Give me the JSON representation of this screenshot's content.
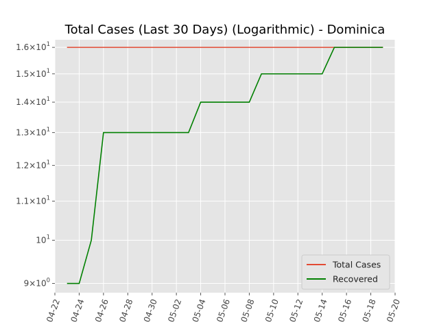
{
  "chart_data": {
    "type": "line",
    "title": "Total Cases (Last 30 Days) (Logarithmic) - Dominica",
    "xlabel": "",
    "ylabel": "",
    "y_scale": "log",
    "ylim": [
      8.8,
      16.3
    ],
    "xlim": [
      "2020-04-22",
      "2020-05-20"
    ],
    "x_ticks": [
      "04-22",
      "04-24",
      "04-26",
      "04-28",
      "04-30",
      "05-02",
      "05-04",
      "05-06",
      "05-08",
      "05-10",
      "05-12",
      "05-14",
      "05-16",
      "05-18",
      "05-20"
    ],
    "y_ticks": [
      {
        "value": 9,
        "mantissa": "9",
        "pow": "0"
      },
      {
        "value": 10,
        "mantissa": "10",
        "pow": "1"
      },
      {
        "value": 11,
        "mantissa": "1.1",
        "pow": "1"
      },
      {
        "value": 12,
        "mantissa": "1.2",
        "pow": "1"
      },
      {
        "value": 13,
        "mantissa": "1.3",
        "pow": "1"
      },
      {
        "value": 14,
        "mantissa": "1.4",
        "pow": "1"
      },
      {
        "value": 15,
        "mantissa": "1.5",
        "pow": "1"
      },
      {
        "value": 16,
        "mantissa": "1.6",
        "pow": "1"
      }
    ],
    "grid": true,
    "legend": "lower-right",
    "dates": [
      "2020-04-23",
      "2020-04-24",
      "2020-04-25",
      "2020-04-26",
      "2020-04-27",
      "2020-04-28",
      "2020-04-29",
      "2020-04-30",
      "2020-05-01",
      "2020-05-02",
      "2020-05-03",
      "2020-05-04",
      "2020-05-05",
      "2020-05-06",
      "2020-05-07",
      "2020-05-08",
      "2020-05-09",
      "2020-05-10",
      "2020-05-11",
      "2020-05-12",
      "2020-05-13",
      "2020-05-14",
      "2020-05-15",
      "2020-05-16",
      "2020-05-17",
      "2020-05-18",
      "2020-05-19"
    ],
    "series": [
      {
        "name": "Total Cases",
        "color": "#E24A33",
        "values": [
          16,
          16,
          16,
          16,
          16,
          16,
          16,
          16,
          16,
          16,
          16,
          16,
          16,
          16,
          16,
          16,
          16,
          16,
          16,
          16,
          16,
          16,
          16,
          16,
          16,
          16,
          16
        ]
      },
      {
        "name": "Recovered",
        "color": "#008000",
        "values": [
          9,
          9,
          10,
          13,
          13,
          13,
          13,
          13,
          13,
          13,
          13,
          14,
          14,
          14,
          14,
          14,
          15,
          15,
          15,
          15,
          15,
          15,
          16,
          16,
          16,
          16,
          16
        ]
      }
    ]
  }
}
